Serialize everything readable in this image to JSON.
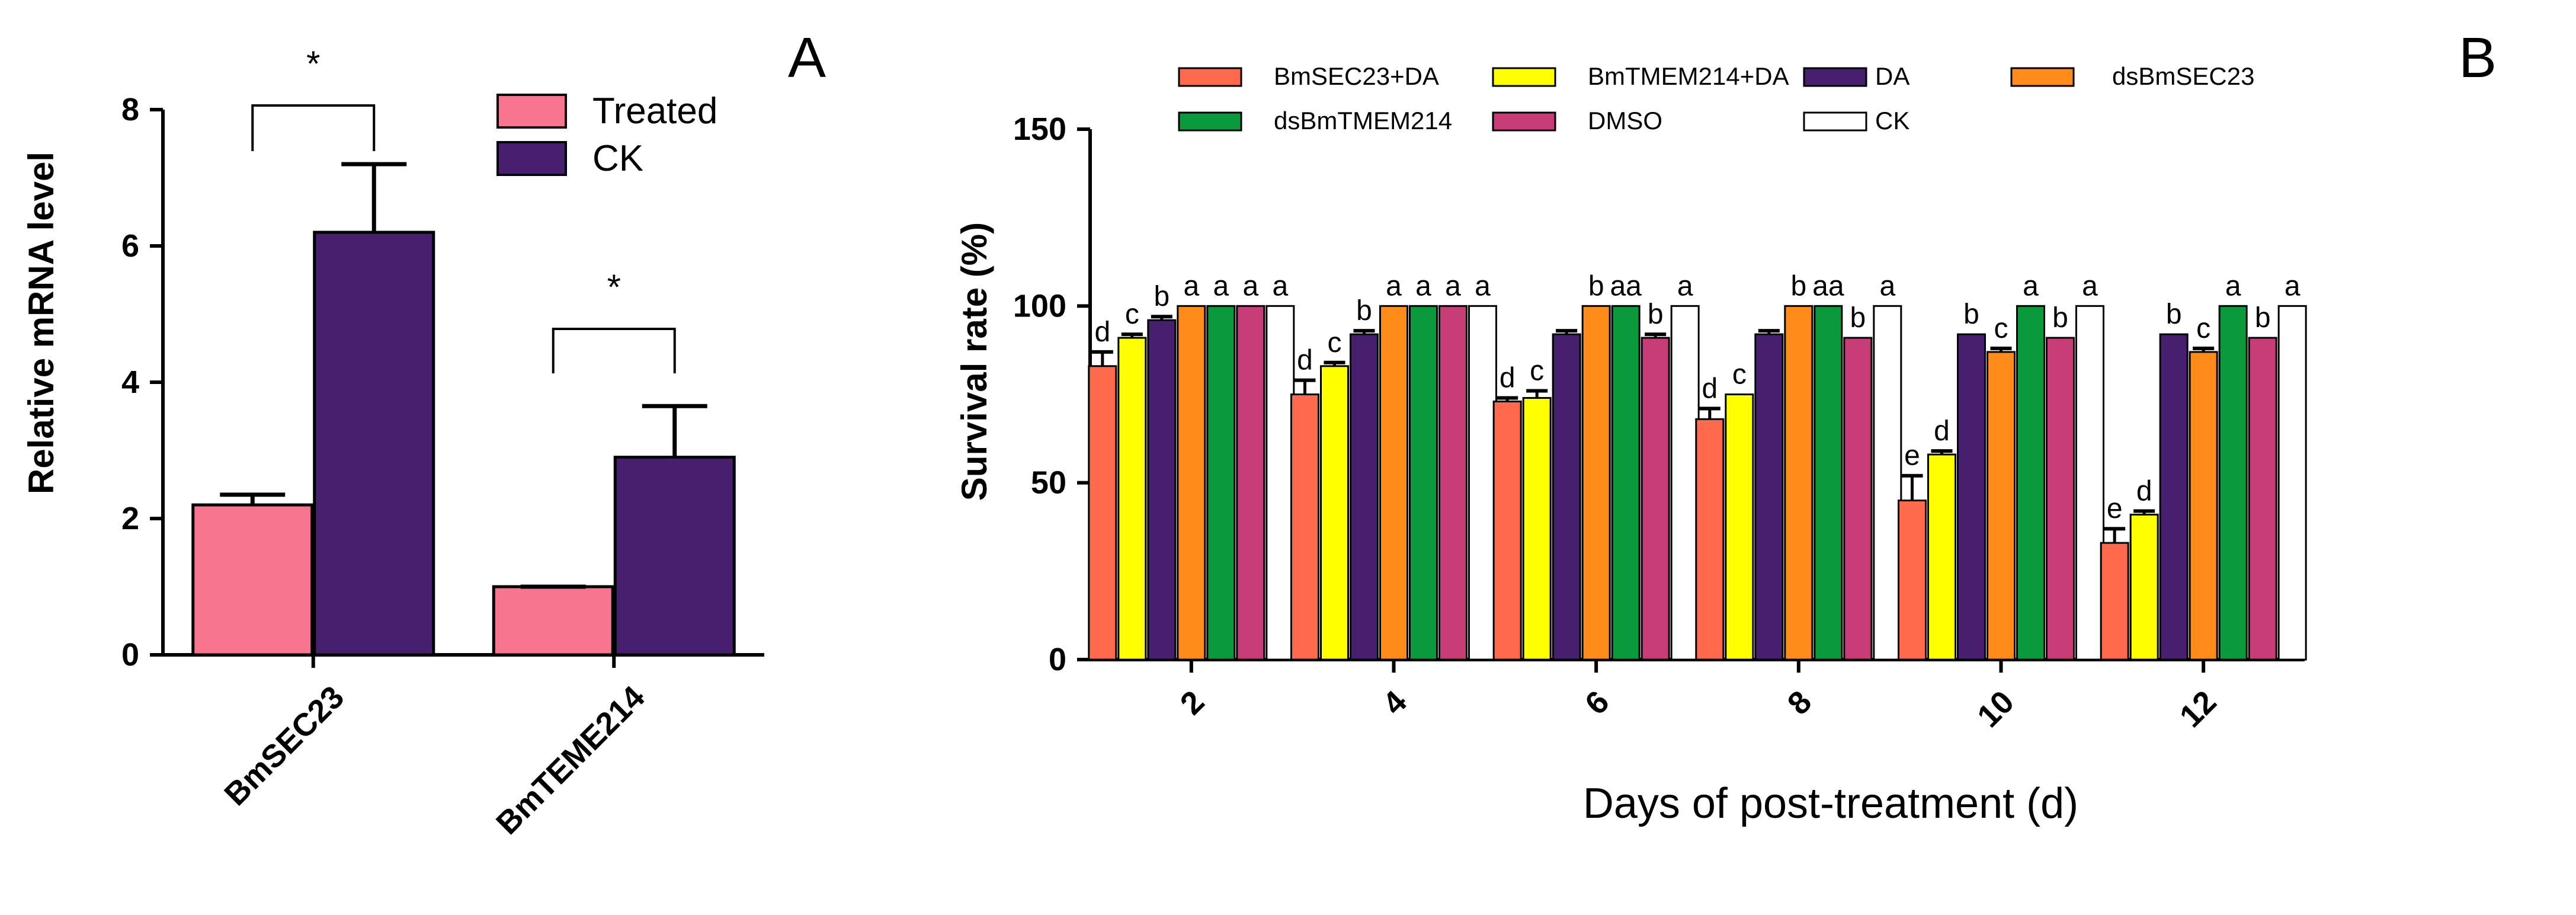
{
  "chart_data": [
    {
      "panel": "A",
      "type": "bar",
      "title": "",
      "xlabel": "",
      "ylabel": "Relative mRNA level",
      "ylim": [
        0,
        8
      ],
      "yticks": [
        0,
        2,
        4,
        6,
        8
      ],
      "categories": [
        "BmSEC23",
        "BmTEME214"
      ],
      "series": [
        {
          "name": "Treated",
          "color": "#f7758e",
          "values": [
            2.2,
            1.0
          ],
          "errors": [
            0.15,
            0.0
          ]
        },
        {
          "name": "CK",
          "color": "#46206e",
          "values": [
            6.2,
            2.9
          ],
          "errors": [
            1.0,
            0.75
          ]
        }
      ],
      "significance": [
        "*",
        "*"
      ],
      "legend_position": "top-right"
    },
    {
      "panel": "B",
      "type": "bar",
      "title": "",
      "xlabel": "Days of post-treatment (d)",
      "ylabel": "Survival rate  (%)",
      "ylim": [
        0,
        150
      ],
      "yticks": [
        0,
        50,
        100,
        150
      ],
      "categories": [
        "2",
        "4",
        "6",
        "8",
        "10",
        "12"
      ],
      "series": [
        {
          "name": "BmSEC23+DA",
          "color": "#ff6a4d",
          "values": [
            83,
            75,
            73,
            68,
            45,
            33
          ],
          "errors": [
            4,
            4,
            1,
            3,
            7,
            4
          ],
          "letters": [
            "d",
            "d",
            "d",
            "d",
            "e",
            "e"
          ]
        },
        {
          "name": "BmTMEM214+DA",
          "color": "#ffff00",
          "values": [
            91,
            83,
            74,
            75,
            58,
            41
          ],
          "errors": [
            1,
            1,
            2,
            0,
            1,
            1
          ],
          "letters": [
            "c",
            "c",
            "c",
            "c",
            "d",
            "d"
          ]
        },
        {
          "name": "DA",
          "color": "#46206e",
          "values": [
            96,
            92,
            92,
            92,
            92,
            92
          ],
          "errors": [
            1,
            1,
            1,
            1,
            0,
            0
          ],
          "letters": [
            "b",
            "b",
            "",
            "",
            "b",
            "b"
          ]
        },
        {
          "name": "dsBmSEC23",
          "color": "#ff8c1a",
          "values": [
            100,
            100,
            100,
            100,
            87,
            87
          ],
          "errors": [
            0,
            0,
            0,
            0,
            1,
            1
          ],
          "letters": [
            "a",
            "a",
            "b",
            "b",
            "c",
            "c"
          ]
        },
        {
          "name": "dsBmTMEM214",
          "color": "#0a9a3c",
          "values": [
            100,
            100,
            100,
            100,
            100,
            100
          ],
          "errors": [
            0,
            0,
            0,
            0,
            0,
            0
          ],
          "letters": [
            "a",
            "a",
            "aa",
            "aa",
            "a",
            "a"
          ]
        },
        {
          "name": "DMSO",
          "color": "#c83c78",
          "values": [
            100,
            100,
            91,
            91,
            91,
            91
          ],
          "errors": [
            0,
            0,
            1,
            0,
            0,
            0
          ],
          "letters": [
            "a",
            "a",
            "b",
            "b",
            "b",
            "b"
          ]
        },
        {
          "name": "CK",
          "color": "#ffffff",
          "values": [
            100,
            100,
            100,
            100,
            100,
            100
          ],
          "errors": [
            0,
            0,
            0,
            0,
            0,
            0
          ],
          "letters": [
            "a",
            "a",
            "a",
            "a",
            "a",
            "a"
          ]
        }
      ],
      "legend_position": "top"
    }
  ]
}
